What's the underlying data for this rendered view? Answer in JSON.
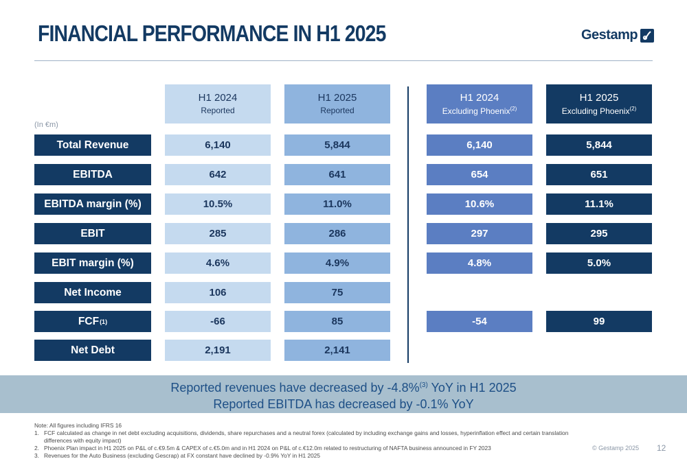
{
  "title": "FINANCIAL PERFORMANCE IN H1 2025",
  "logo": {
    "text": "Gestamp",
    "icon": "gestamp-logo-icon"
  },
  "unit_label": "(In €m)",
  "columns": [
    {
      "period": "H1 2024",
      "basis": "Reported",
      "footnote": ""
    },
    {
      "period": "H1 2025",
      "basis": "Reported",
      "footnote": ""
    },
    {
      "period": "H1 2024",
      "basis": "Excluding Phoenix",
      "footnote": "(2)"
    },
    {
      "period": "H1 2025",
      "basis": "Excluding Phoenix",
      "footnote": "(2)"
    }
  ],
  "rows": [
    {
      "label": "Total Revenue",
      "sup": "",
      "values": [
        "6,140",
        "5,844",
        "6,140",
        "5,844"
      ]
    },
    {
      "label": "EBITDA",
      "sup": "",
      "values": [
        "642",
        "641",
        "654",
        "651"
      ]
    },
    {
      "label": "EBITDA margin (%)",
      "sup": "",
      "values": [
        "10.5%",
        "11.0%",
        "10.6%",
        "11.1%"
      ]
    },
    {
      "label": "EBIT",
      "sup": "",
      "values": [
        "285",
        "286",
        "297",
        "295"
      ]
    },
    {
      "label": "EBIT margin (%)",
      "sup": "",
      "values": [
        "4.6%",
        "4.9%",
        "4.8%",
        "5.0%"
      ]
    },
    {
      "label": "Net Income",
      "sup": "",
      "values": [
        "106",
        "75",
        null,
        null
      ]
    },
    {
      "label": "FCF",
      "sup": "(1)",
      "values": [
        "-66",
        "85",
        "-54",
        "99"
      ]
    },
    {
      "label": "Net Debt",
      "sup": "",
      "values": [
        "2,191",
        "2,141",
        null,
        null
      ]
    }
  ],
  "banner": {
    "line1_pre": "Reported revenues have decreased by -4.8%",
    "line1_sup": "(3)",
    "line1_post": " YoY in H1 2025",
    "line2": "Reported EBITDA has decreased by -0.1% YoY"
  },
  "notes": {
    "intro": "Note: All figures including IFRS 16",
    "items": [
      {
        "num": "1.",
        "text": "FCF calculated as change in net debt excluding acquisitions, dividends, share repurchases and a neutral forex (calculated by including exchange gains and losses, hyperinflation effect and certain translation differences with equity impact)"
      },
      {
        "num": "2.",
        "text": "Phoenix Plan impact in H1 2025 on P&L of c.€9.5m & CAPEX of c.€5.0m and in H1 2024 on P&L of c.€12.0m related to restructuring of NAFTA business announced in FY 2023"
      },
      {
        "num": "3.",
        "text": "Revenues for the Auto Business (excluding Gescrap) at FX constant have declined by -0.9% YoY in H1 2025"
      }
    ]
  },
  "copyright": "© Gestamp 2025",
  "page_number": "12",
  "colors": {
    "navy": "#133a63",
    "col_h1_2024_reported": "#c5daef",
    "col_h1_2025_reported": "#8fb4de",
    "col_h1_2024_excl": "#5b7ec2",
    "col_h1_2025_excl": "#133a63",
    "banner_bg": "#a8bfce",
    "banner_text": "#1d4f86"
  }
}
